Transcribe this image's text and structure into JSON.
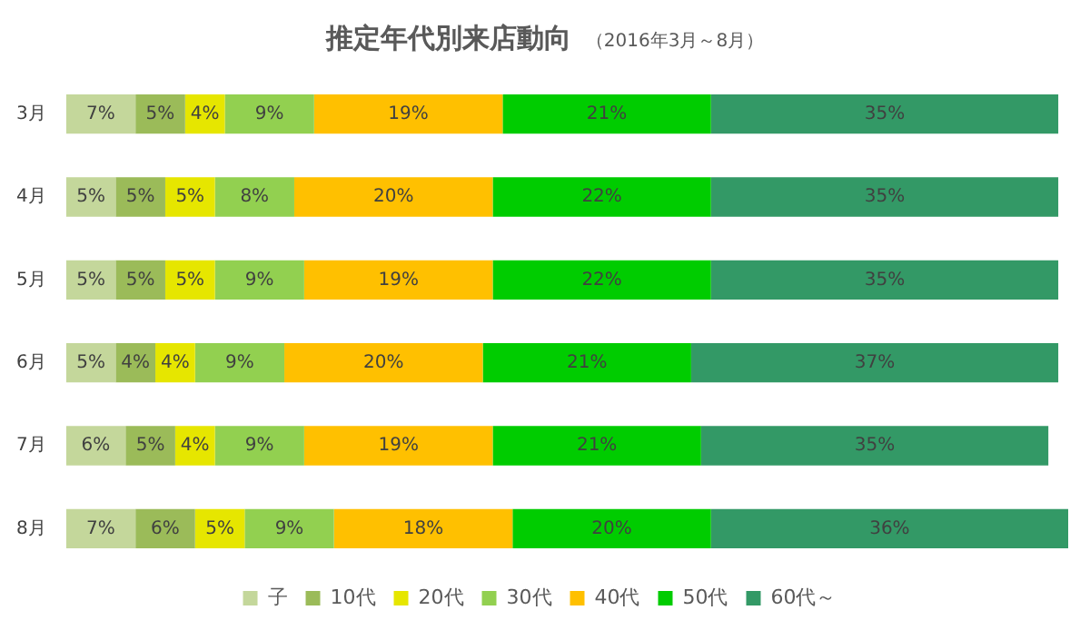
{
  "chart_data": {
    "type": "bar",
    "orientation": "horizontal",
    "stacked": true,
    "title": "推定年代別来店動向",
    "subtitle": "（2016年3月～8月）",
    "categories": [
      "3月",
      "4月",
      "5月",
      "6月",
      "7月",
      "8月"
    ],
    "tick_labels": "y",
    "legend": "bottom",
    "series": [
      {
        "name": "子",
        "color": "#c4d79b",
        "values": [
          7,
          5,
          5,
          5,
          6,
          7
        ],
        "value_labels": [
          "7%",
          "5%",
          "5%",
          "5%",
          "6%",
          "7%"
        ]
      },
      {
        "name": "10代",
        "color": "#9bbb59",
        "values": [
          5,
          5,
          5,
          4,
          5,
          6
        ],
        "value_labels": [
          "5%",
          "5%",
          "5%",
          "4%",
          "5%",
          "6%"
        ]
      },
      {
        "name": "20代",
        "color": "#e6e600",
        "values": [
          4,
          5,
          5,
          4,
          4,
          5
        ],
        "value_labels": [
          "4%",
          "5%",
          "5%",
          "4%",
          "4%",
          "5%"
        ]
      },
      {
        "name": "30代",
        "color": "#92d050",
        "values": [
          9,
          8,
          9,
          9,
          9,
          9
        ],
        "value_labels": [
          "9%",
          "8%",
          "9%",
          "9%",
          "9%",
          "9%"
        ]
      },
      {
        "name": "40代",
        "color": "#ffc000",
        "values": [
          19,
          20,
          19,
          20,
          19,
          18
        ],
        "value_labels": [
          "19%",
          "20%",
          "19%",
          "20%",
          "19%",
          "18%"
        ]
      },
      {
        "name": "50代",
        "color": "#00cc00",
        "values": [
          21,
          22,
          22,
          21,
          21,
          20
        ],
        "value_labels": [
          "21%",
          "22%",
          "22%",
          "21%",
          "21%",
          "20%"
        ]
      },
      {
        "name": "60代～",
        "color": "#339966",
        "values": [
          35,
          35,
          35,
          37,
          35,
          36
        ],
        "value_labels": [
          "35%",
          "35%",
          "35%",
          "37%",
          "35%",
          "36%"
        ]
      }
    ]
  }
}
